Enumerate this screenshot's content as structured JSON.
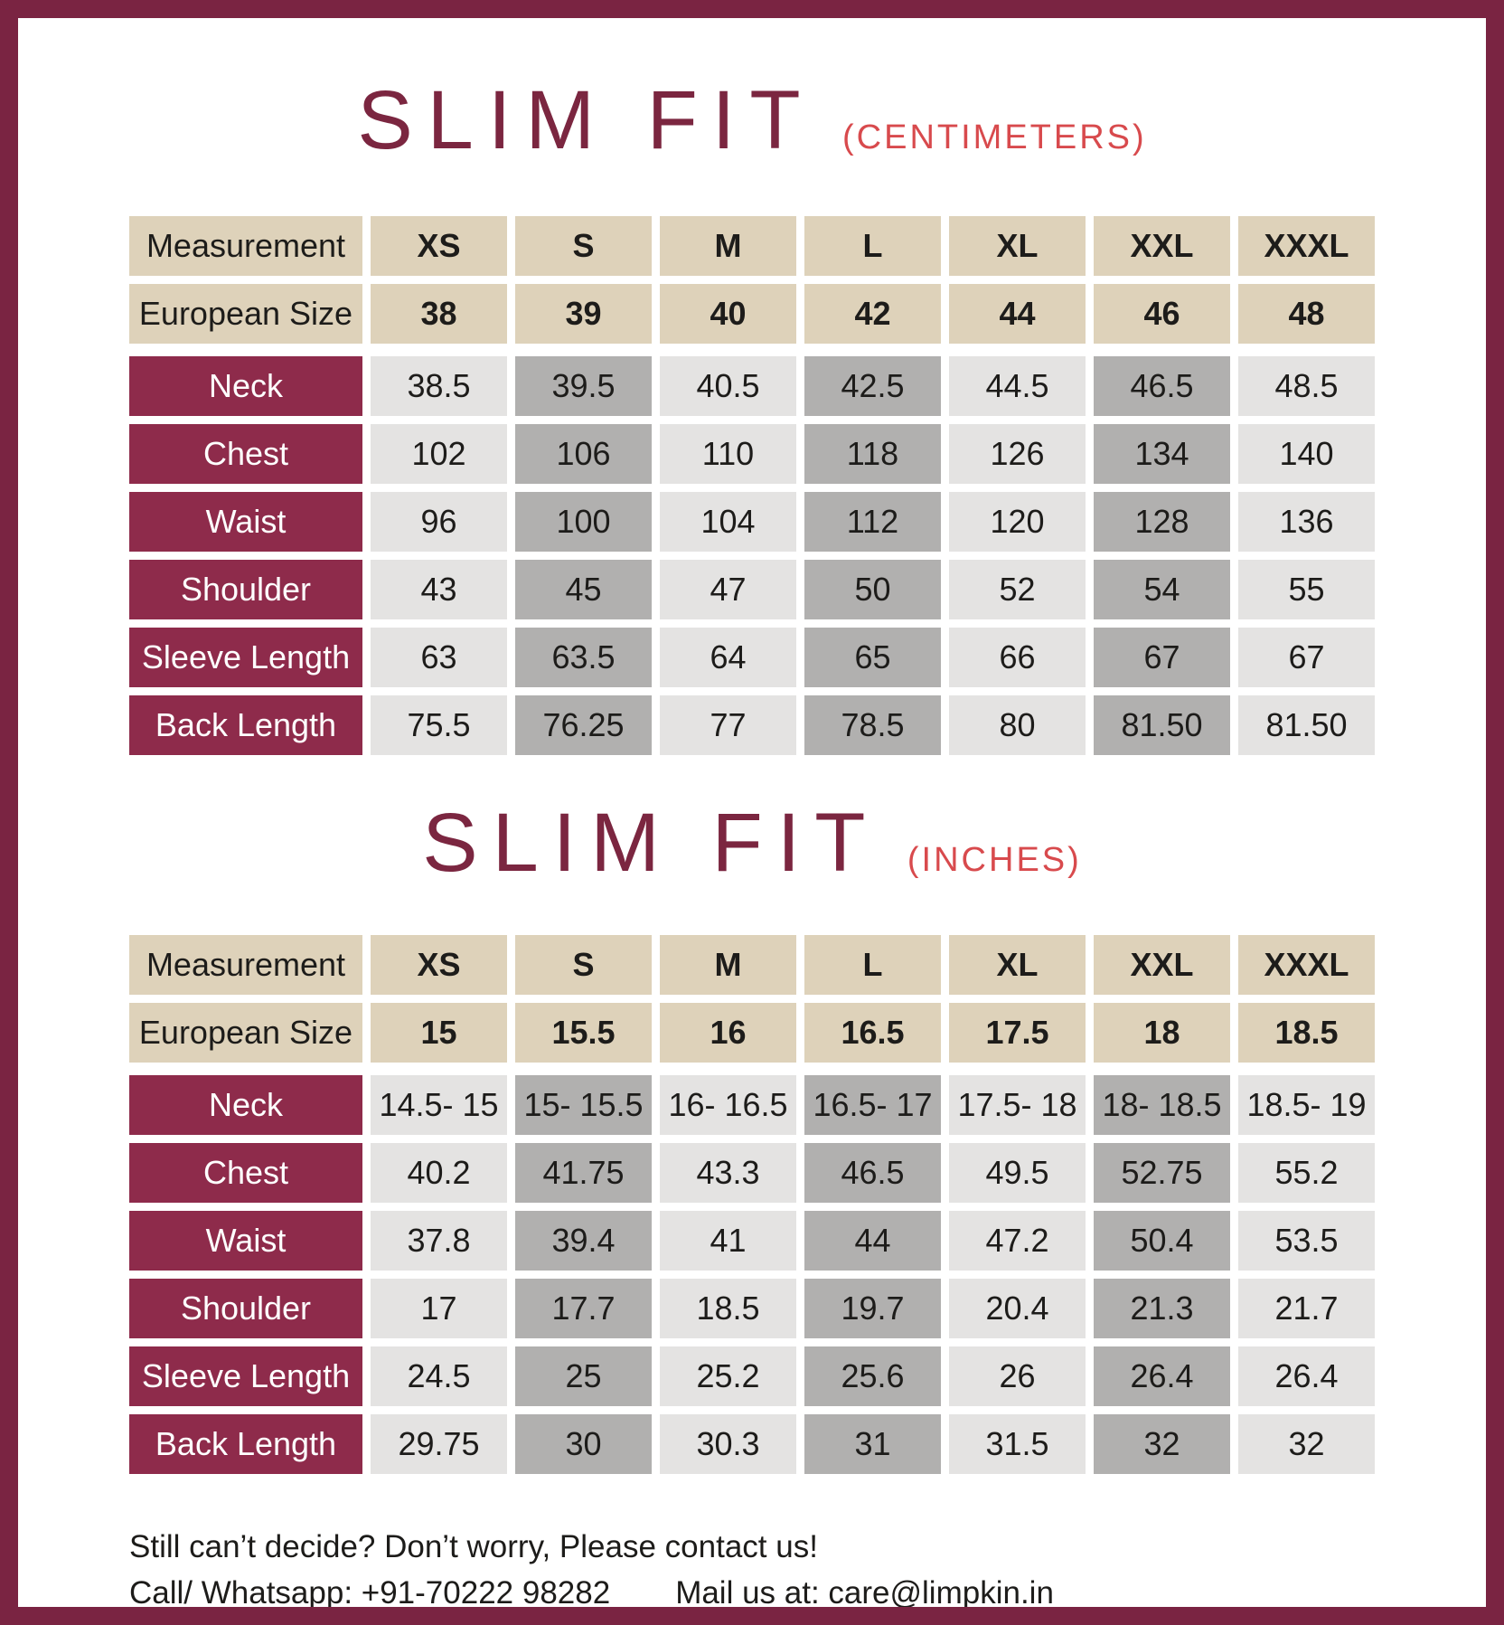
{
  "colors": {
    "frame": "#7a2442",
    "title_maroon": "#7b2640",
    "accent_red": "#d84a4d",
    "tan": "#ded2ba",
    "maroon_label": "#8e2b4b",
    "light_gray": "#e4e3e2",
    "dark_gray": "#b1b0af",
    "text_dark": "#1d1c1a"
  },
  "sections": [
    {
      "title": {
        "main": "SLIM FIT",
        "sub": "(CENTIMETERS)"
      },
      "table": {
        "size_row": {
          "label": "Measurement",
          "values": [
            "XS",
            "S",
            "M",
            "L",
            "XL",
            "XXL",
            "XXXL"
          ]
        },
        "euro_row": {
          "label": "European Size",
          "values": [
            "38",
            "39",
            "40",
            "42",
            "44",
            "46",
            "48"
          ]
        },
        "rows": [
          {
            "label": "Neck",
            "values": [
              "38.5",
              "39.5",
              "40.5",
              "42.5",
              "44.5",
              "46.5",
              "48.5"
            ]
          },
          {
            "label": "Chest",
            "values": [
              "102",
              "106",
              "110",
              "118",
              "126",
              "134",
              "140"
            ]
          },
          {
            "label": "Waist",
            "values": [
              "96",
              "100",
              "104",
              "112",
              "120",
              "128",
              "136"
            ]
          },
          {
            "label": "Shoulder",
            "values": [
              "43",
              "45",
              "47",
              "50",
              "52",
              "54",
              "55"
            ]
          },
          {
            "label": "Sleeve Length",
            "values": [
              "63",
              "63.5",
              "64",
              "65",
              "66",
              "67",
              "67"
            ]
          },
          {
            "label": "Back Length",
            "values": [
              "75.5",
              "76.25",
              "77",
              "78.5",
              "80",
              "81.50",
              "81.50"
            ]
          }
        ]
      }
    },
    {
      "title": {
        "main": "SLIM FIT",
        "sub": "(INCHES)"
      },
      "table": {
        "size_row": {
          "label": "Measurement",
          "values": [
            "XS",
            "S",
            "M",
            "L",
            "XL",
            "XXL",
            "XXXL"
          ]
        },
        "euro_row": {
          "label": "European Size",
          "values": [
            "15",
            "15.5",
            "16",
            "16.5",
            "17.5",
            "18",
            "18.5"
          ]
        },
        "rows": [
          {
            "label": "Neck",
            "values": [
              "14.5- 15",
              "15- 15.5",
              "16- 16.5",
              "16.5- 17",
              "17.5- 18",
              "18- 18.5",
              "18.5- 19"
            ]
          },
          {
            "label": "Chest",
            "values": [
              "40.2",
              "41.75",
              "43.3",
              "46.5",
              "49.5",
              "52.75",
              "55.2"
            ]
          },
          {
            "label": "Waist",
            "values": [
              "37.8",
              "39.4",
              "41",
              "44",
              "47.2",
              "50.4",
              "53.5"
            ]
          },
          {
            "label": "Shoulder",
            "values": [
              "17",
              "17.7",
              "18.5",
              "19.7",
              "20.4",
              "21.3",
              "21.7"
            ]
          },
          {
            "label": "Sleeve Length",
            "values": [
              "24.5",
              "25",
              "25.2",
              "25.6",
              "26",
              "26.4",
              "26.4"
            ]
          },
          {
            "label": "Back Length",
            "values": [
              "29.75",
              "30",
              "30.3",
              "31",
              "31.5",
              "32",
              "32"
            ]
          }
        ]
      }
    }
  ],
  "footer": {
    "line1": "Still can’t decide? Don’t worry, Please contact us!",
    "call": "Call/ Whatsapp: +91-70222 98282",
    "mail": "Mail us at: care@limpkin.in"
  }
}
